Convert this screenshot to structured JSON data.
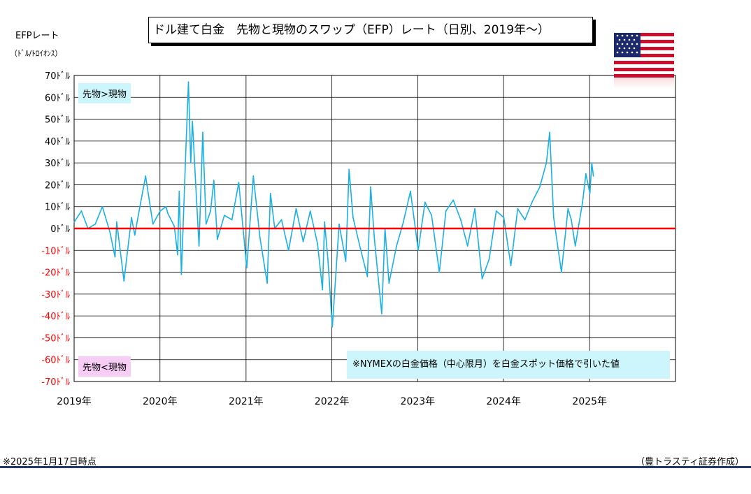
{
  "title": "ドル建て白金　先物と現物のスワップ（EFP）レート（日別、2019年～）",
  "unit_label": "EFPレート",
  "unit_sub": "（ﾄﾞﾙ/ﾄﾛｲｵﾝｽ）",
  "annotations": {
    "top": "先物>現物",
    "bottom": "先物<現物",
    "method": "※NYMEXの白金価格（中心限月）を白金スポット価格で引いた値"
  },
  "footer": {
    "date": "※2025年1月17日時点",
    "source": "（豊トラスティ証券作成）"
  },
  "flag_icon": "us-flag-icon",
  "colors": {
    "series": "#1ab0e6",
    "zero_line": "#ff0000",
    "negative_tick": "#ff0000",
    "annotation_positive_bg": "#ccf6fb",
    "annotation_negative_bg": "#f7cdf6"
  },
  "chart_data": {
    "type": "line",
    "title": "ドル建て白金　先物と現物のスワップ（EFP）レート（日別、2019年～）",
    "ylabel": "EFPレート",
    "y_unit": "ﾄﾞﾙ",
    "ylim": [
      -70,
      70
    ],
    "y_ticks": [
      70,
      60,
      50,
      40,
      30,
      20,
      10,
      0,
      -10,
      -20,
      -30,
      -40,
      -50,
      -60,
      -70
    ],
    "y_tick_labels": [
      "70ﾄﾞﾙ",
      "60ﾄﾞﾙ",
      "50ﾄﾞﾙ",
      "40ﾄﾞﾙ",
      "30ﾄﾞﾙ",
      "20ﾄﾞﾙ",
      "10ﾄﾞﾙ",
      "0ﾄﾞﾙ",
      "-10ﾄﾞﾙ",
      "-20ﾄﾞﾙ",
      "-30ﾄﾞﾙ",
      "-40ﾄﾞﾙ",
      "-50ﾄﾞﾙ",
      "-60ﾄﾞﾙ",
      "-70ﾄﾞﾙ"
    ],
    "xlim": [
      "2019-01-01",
      "2026-01-01"
    ],
    "x_ticks": [
      "2019-01-01",
      "2020-01-01",
      "2021-01-01",
      "2022-01-01",
      "2023-01-01",
      "2024-01-01",
      "2025-01-01"
    ],
    "x_tick_labels": [
      "2019年",
      "2020年",
      "2021年",
      "2022年",
      "2023年",
      "2024年",
      "2025年"
    ],
    "grid": true,
    "reference_line": 0,
    "series": [
      {
        "x": [
          "2019-01-02",
          "2019-02-01",
          "2019-03-01",
          "2019-04-01",
          "2019-05-01",
          "2019-06-03",
          "2019-06-24",
          "2019-07-01",
          "2019-08-01",
          "2019-09-02",
          "2019-09-16",
          "2019-10-01",
          "2019-11-01",
          "2019-12-02",
          "2020-01-02",
          "2020-01-27",
          "2020-02-03",
          "2020-03-02",
          "2020-03-16",
          "2020-03-23",
          "2020-04-01",
          "2020-04-20",
          "2020-05-01",
          "2020-05-11",
          "2020-05-18",
          "2020-06-01",
          "2020-06-15",
          "2020-07-01",
          "2020-07-15",
          "2020-08-03",
          "2020-08-17",
          "2020-09-01",
          "2020-10-01",
          "2020-11-02",
          "2020-12-01",
          "2021-01-04",
          "2021-02-01",
          "2021-03-01",
          "2021-04-01",
          "2021-04-15",
          "2021-05-03",
          "2021-06-01",
          "2021-07-01",
          "2021-08-02",
          "2021-09-01",
          "2021-10-01",
          "2021-11-01",
          "2021-11-22",
          "2021-12-01",
          "2021-12-15",
          "2022-01-03",
          "2022-02-01",
          "2022-03-01",
          "2022-03-15",
          "2022-04-01",
          "2022-05-02",
          "2022-06-01",
          "2022-06-15",
          "2022-07-01",
          "2022-08-01",
          "2022-08-15",
          "2022-09-01",
          "2022-10-03",
          "2022-11-01",
          "2022-12-01",
          "2023-01-03",
          "2023-02-01",
          "2023-03-01",
          "2023-04-03",
          "2023-05-01",
          "2023-06-01",
          "2023-07-03",
          "2023-08-01",
          "2023-09-01",
          "2023-10-02",
          "2023-11-01",
          "2023-12-01",
          "2024-01-02",
          "2024-02-01",
          "2024-03-01",
          "2024-04-01",
          "2024-05-01",
          "2024-06-03",
          "2024-07-01",
          "2024-07-15",
          "2024-08-01",
          "2024-09-03",
          "2024-10-01",
          "2024-10-15",
          "2024-11-01",
          "2024-12-02",
          "2024-12-16",
          "2025-01-02",
          "2025-01-10",
          "2025-01-17"
        ],
        "y": [
          3,
          8,
          0,
          2,
          10,
          -2,
          -13,
          3,
          -24,
          5,
          -3,
          6,
          24,
          2,
          8,
          10,
          7,
          1,
          -12,
          17,
          -21,
          36,
          67,
          30,
          49,
          20,
          -8,
          44,
          2,
          8,
          22,
          -5,
          6,
          4,
          21,
          -18,
          24,
          -4,
          -25,
          16,
          0,
          4,
          -10,
          9,
          -6,
          8,
          -7,
          -28,
          3,
          -14,
          -45,
          2,
          -15,
          27,
          5,
          -9,
          -22,
          19,
          -5,
          -39,
          0,
          -25,
          -8,
          3,
          17,
          -10,
          12,
          6,
          -20,
          8,
          13,
          4,
          -8,
          9,
          -23,
          -14,
          8,
          5,
          -17,
          9,
          4,
          12,
          19,
          30,
          44,
          5,
          -20,
          9,
          4,
          -8,
          12,
          25,
          16,
          30,
          24
        ]
      }
    ]
  }
}
